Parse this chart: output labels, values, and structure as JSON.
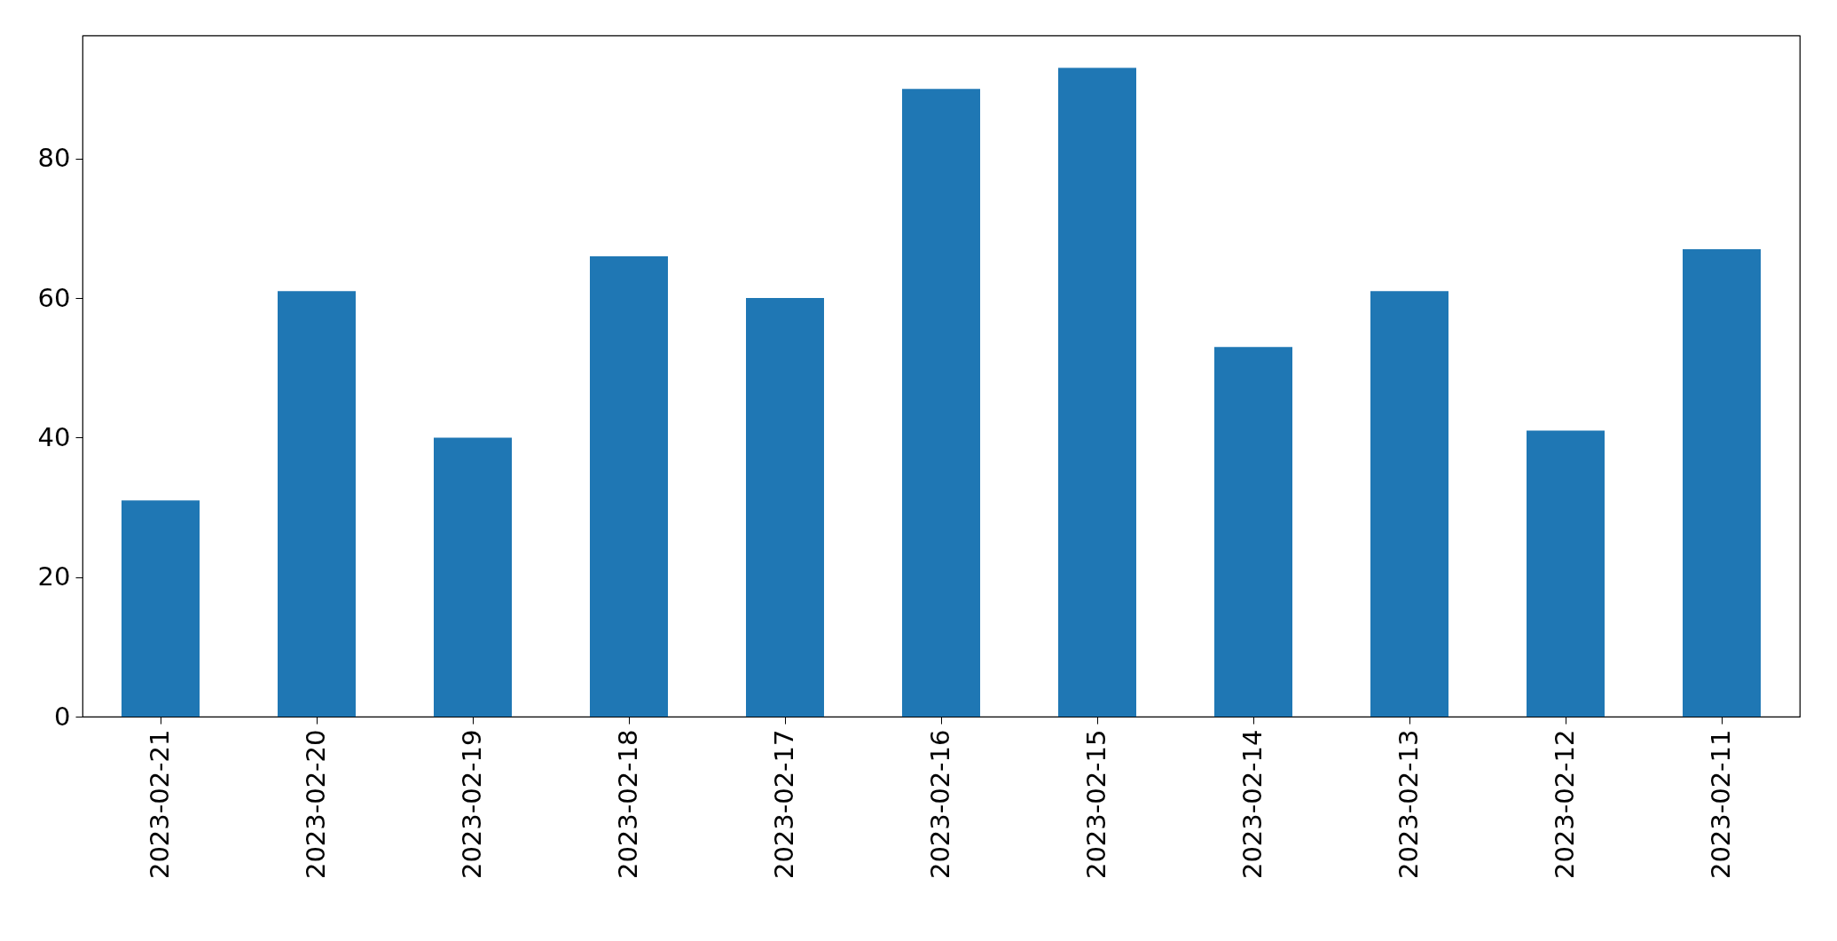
{
  "chart_data": {
    "type": "bar",
    "categories": [
      "2023-02-21",
      "2023-02-20",
      "2023-02-19",
      "2023-02-18",
      "2023-02-17",
      "2023-02-16",
      "2023-02-15",
      "2023-02-14",
      "2023-02-13",
      "2023-02-12",
      "2023-02-11"
    ],
    "series": [
      {
        "color": "#1f77b4",
        "values": [
          31,
          61,
          40,
          66,
          60,
          90,
          93,
          53,
          61,
          41,
          67
        ]
      }
    ],
    "ylim": [
      0,
      97.65
    ],
    "yticks": [
      0,
      20,
      40,
      60,
      80
    ],
    "grid": false
  }
}
